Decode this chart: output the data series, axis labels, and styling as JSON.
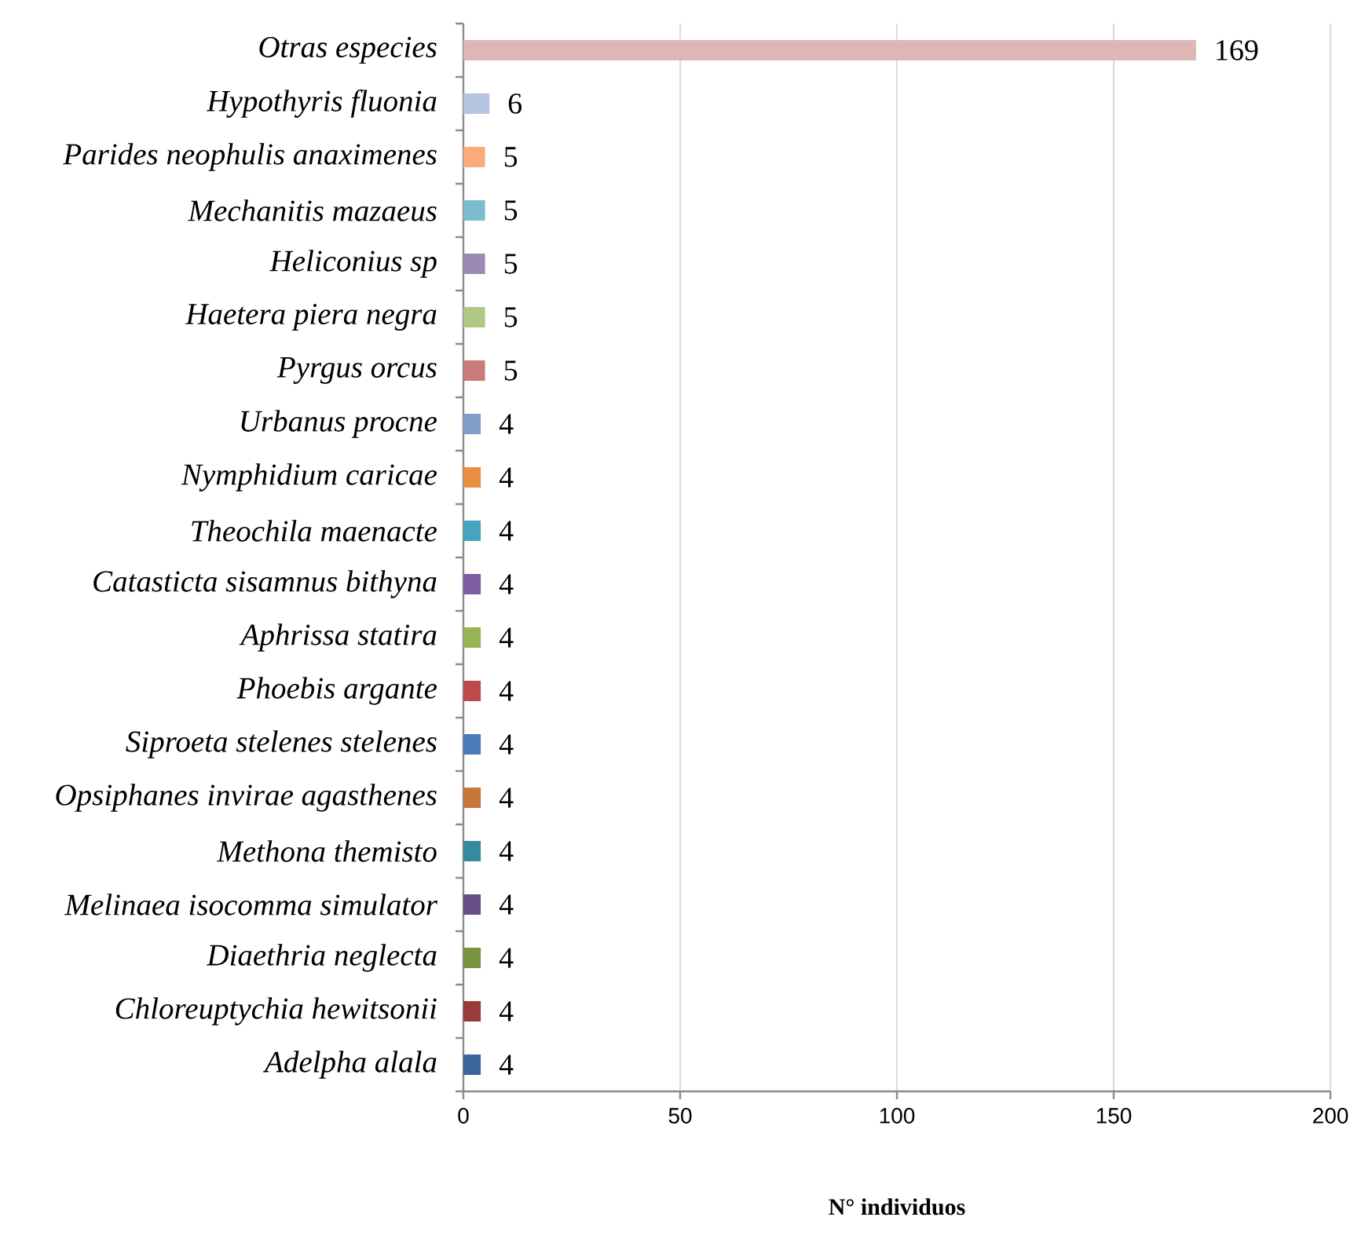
{
  "chart_data": {
    "type": "bar",
    "orientation": "horizontal",
    "xlabel": "N° individuos",
    "categories": [
      "Otras especies",
      "Hypothyris fluonia",
      "Parides neophulis anaximenes",
      "Mechanitis mazaeus",
      "Heliconius sp",
      "Haetera piera negra",
      "Pyrgus orcus",
      "Urbanus procne",
      "Nymphidium caricae",
      "Theochila maenacte",
      "Catasticta sisamnus bithyna",
      "Aphrissa statira",
      "Phoebis argante",
      "Siproeta stelenes stelenes",
      "Opsiphanes invirae agasthenes",
      "Methona themisto",
      "Melinaea isocomma simulator",
      "Diaethria neglecta",
      "Chloreuptychia hewitsonii",
      "Adelpha alala"
    ],
    "values": [
      169,
      6,
      5,
      5,
      5,
      5,
      5,
      4,
      4,
      4,
      4,
      4,
      4,
      4,
      4,
      4,
      4,
      4,
      4,
      4
    ],
    "value_labels": [
      "169",
      "6",
      "5",
      "5",
      "5",
      "5",
      "5",
      "4",
      "4",
      "4",
      "4",
      "4",
      "4",
      "4",
      "4",
      "4",
      "4",
      "4",
      "4",
      "4"
    ],
    "colors": [
      "#dfb6b6",
      "#b5c4e0",
      "#f9ab7c",
      "#7cbccf",
      "#9d89b6",
      "#aec886",
      "#cb7b7a",
      "#7f9ec9",
      "#e98d41",
      "#46a5bc",
      "#7d5da3",
      "#95b454",
      "#bb4a48",
      "#4a7ab9",
      "#c7773a",
      "#368a9d",
      "#664f86",
      "#7a9341",
      "#973c3b",
      "#3b659b"
    ],
    "xlim": [
      0,
      200
    ],
    "xticks": [
      0,
      50,
      100,
      150,
      200
    ],
    "grid": "x"
  }
}
